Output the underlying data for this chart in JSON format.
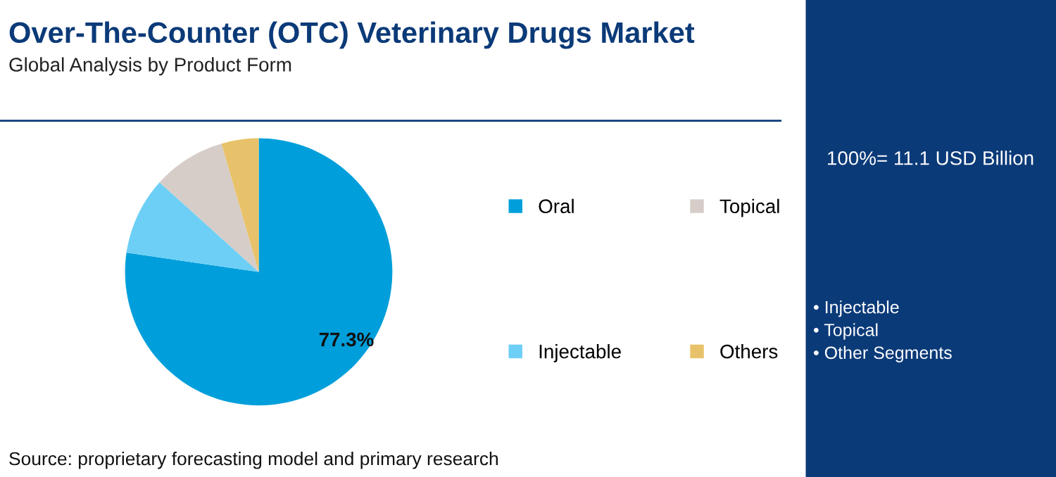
{
  "chart_data": {
    "type": "pie",
    "title": "Over-The-Counter (OTC) Veterinary Drugs Market",
    "subtitle": "Global Analysis by Product Form",
    "categories": [
      "Oral",
      "Injectable",
      "Topical",
      "Others"
    ],
    "values": [
      77.3,
      9.4,
      8.8,
      4.5
    ],
    "value_labels": [
      "77.3%",
      null,
      null,
      null
    ],
    "colors": [
      "#009fdb",
      "#6dcff6",
      "#d6cdc8",
      "#e8c26a"
    ],
    "legend": "right",
    "annotations": [
      "100%= 11.1 USD Billion",
      "• Injectable\n• Topical\n• Other Segments",
      "Source: proprietary forecasting model and primary research"
    ]
  }
}
